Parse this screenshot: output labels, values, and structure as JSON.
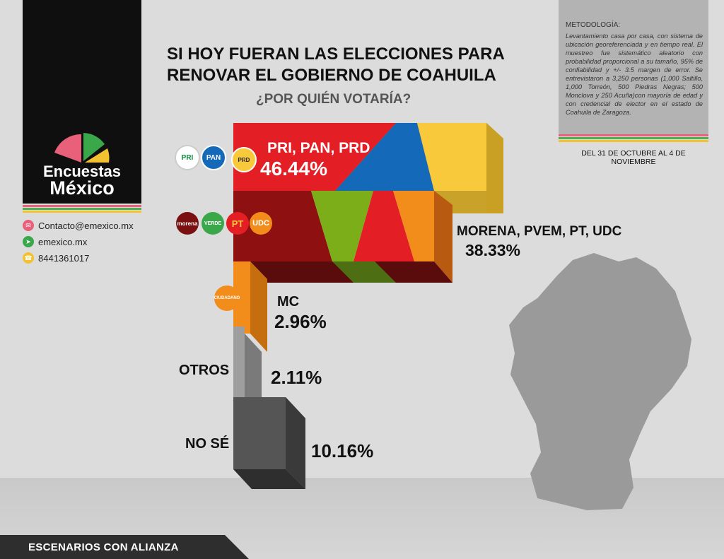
{
  "brand": {
    "name_line1": "Encuestas",
    "name_line2": "México"
  },
  "contacts": [
    {
      "icon": "mail-icon",
      "text": "Contacto@emexico.mx",
      "color": "#e8607a"
    },
    {
      "icon": "cursor-icon",
      "text": "emexico.mx",
      "color": "#3aa84a"
    },
    {
      "icon": "phone-icon",
      "text": "8441361017",
      "color": "#f2c230"
    }
  ],
  "header": {
    "title_line1": "SI HOY FUERAN LAS ELECCIONES PARA",
    "title_line2": "RENOVAR EL GOBIERNO DE COAHUILA",
    "question": "¿POR QUIÉN VOTARÍA?"
  },
  "methodology": {
    "heading": "METODOLOGÍA:",
    "body": "Levantamiento casa por casa, con sistema de ubicación georeferenciada y en tiempo real. El muestreo fue sistemático aleatorio con probabilidad proporcional a su tamaño, 95% de confiabilidad y +/- 3.5 margen de error. Se entrevistaron a 3,250 personas (1,000 Saltillo, 1,000 Torreón, 500 Piedras Negras; 500 Monclova y 250 Acuña)con mayoría de edad y con credencial de elector en el estado de Coahuila de Zaragoza.",
    "dates": "DEL 31 DE OCTUBRE AL 4 DE NOVIEMBRE"
  },
  "badges": {
    "pri": "PRI",
    "pan": "PAN",
    "prd": "PRD",
    "morena": "morena",
    "verde": "VERDE",
    "pt": "PT",
    "udc": "UDC",
    "mc": "CIUDADANO"
  },
  "footer": {
    "label": "ESCENARIOS CON ALIANZA"
  },
  "colors": {
    "pri": "#e31e24",
    "pan": "#1469b8",
    "prd": "#f8c93a",
    "morena": "#8f1010",
    "mc": "#f28c1a",
    "otros": "#999999",
    "nose": "#555555",
    "stripe_pink": "#e8607a",
    "stripe_green": "#4caf50",
    "stripe_yellow": "#f2c230"
  },
  "chart_data": {
    "type": "bar",
    "orientation": "stepped-3d",
    "categories": [
      "PRI, PAN, PRD",
      "MORENA, PVEM, PT, UDC",
      "MC",
      "OTROS",
      "NO SÉ"
    ],
    "values": [
      46.44,
      38.33,
      2.96,
      2.11,
      10.16
    ],
    "value_labels": [
      "46.44%",
      "38.33%",
      "2.96%",
      "2.11%",
      "10.16%"
    ],
    "unit": "%"
  }
}
